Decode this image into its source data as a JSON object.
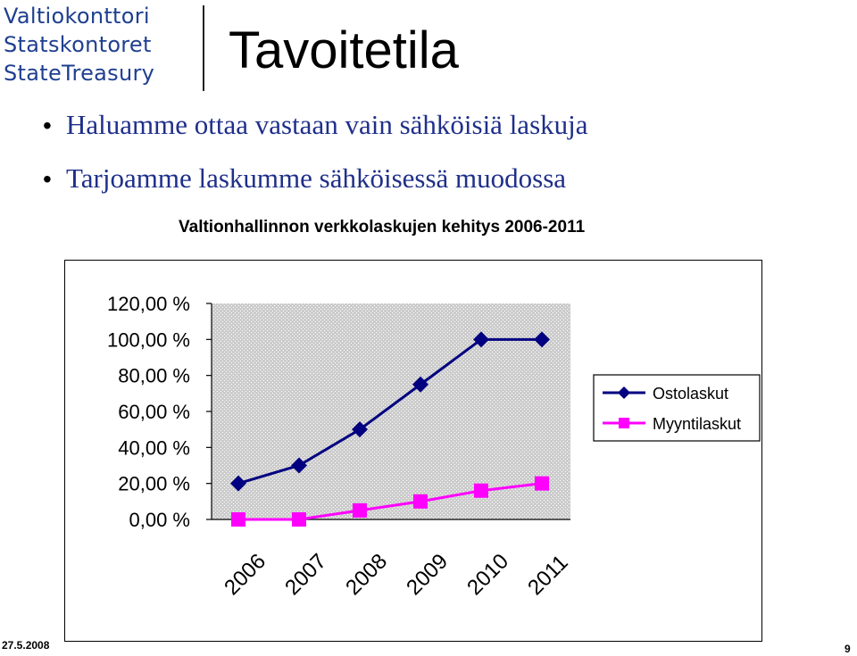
{
  "header": {
    "logo_lines": [
      "Valtiokonttori",
      "Statskontoret",
      "StateTreasury"
    ],
    "title": "Tavoitetila"
  },
  "bullets": [
    "Haluamme ottaa vastaan vain sähköisiä laskuja",
    "Tarjoamme laskumme sähköisessä muodossa"
  ],
  "footer": {
    "date": "27.5.2008",
    "page": "9"
  },
  "colors": {
    "logo_blue": "#1f3f8f",
    "bullet_text": "#1f2f8a",
    "plot_bg": "#cccccc",
    "series_ostolaskut": "#000080",
    "series_myyntilaskut": "#ff00ff"
  },
  "chart_data": {
    "type": "line",
    "title": "Valtionhallinnon verkkolaskujen kehitys 2006-2011",
    "categories": [
      "2006",
      "2007",
      "2008",
      "2009",
      "2010",
      "2011"
    ],
    "series": [
      {
        "name": "Ostolaskut",
        "values": [
          20,
          30,
          50,
          75,
          100,
          100
        ],
        "marker": "diamond"
      },
      {
        "name": "Myyntilaskut",
        "values": [
          0,
          0,
          5,
          10,
          16,
          20
        ],
        "marker": "square"
      }
    ],
    "ylim": [
      0,
      120
    ],
    "yticks": [
      0,
      20,
      40,
      60,
      80,
      100,
      120
    ],
    "ytick_labels": [
      "0,00 %",
      "20,00 %",
      "40,00 %",
      "60,00 %",
      "80,00 %",
      "100,00 %",
      "120,00 %"
    ],
    "xlabel": "",
    "ylabel": "",
    "grid": false,
    "legend": "right"
  }
}
